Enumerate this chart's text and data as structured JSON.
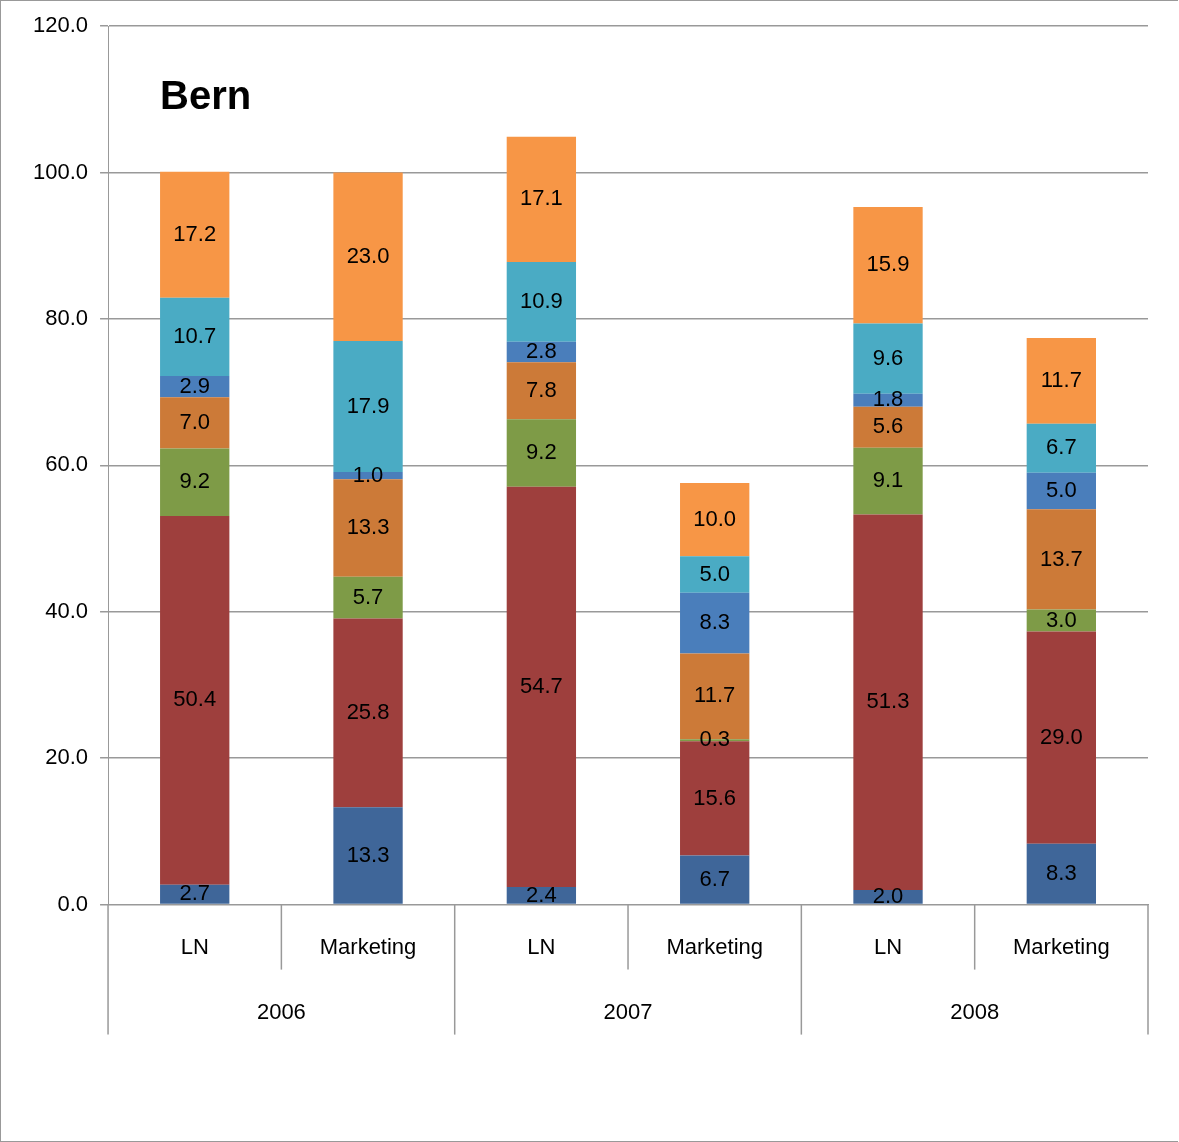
{
  "chart_data": {
    "type": "bar",
    "title": "Bern",
    "stacked": true,
    "grid": "y",
    "legend": false,
    "categories": [
      "LN",
      "Marketing",
      "LN",
      "Marketing",
      "LN",
      "Marketing"
    ],
    "annotations": [
      "2006",
      "2007",
      "2008"
    ],
    "ylim": [
      0,
      120
    ],
    "yticks": [
      {
        "value": 0,
        "label": "0.0"
      },
      {
        "value": 20,
        "label": "20.0"
      },
      {
        "value": 40,
        "label": "40.0"
      },
      {
        "value": 60,
        "label": "60.0"
      },
      {
        "value": 80,
        "label": "80.0"
      },
      {
        "value": 100,
        "label": "100.0"
      },
      {
        "value": 120,
        "label": "120.0"
      }
    ],
    "series": [
      {
        "color": "#3f6699",
        "values": [
          2.7,
          13.3,
          2.4,
          6.7,
          2.0,
          8.3
        ],
        "value_labels": [
          "2.7",
          "13.3",
          "2.4",
          "6.7",
          "2.0",
          "8.3"
        ]
      },
      {
        "color": "#9e3f3d",
        "values": [
          50.4,
          25.8,
          54.7,
          15.6,
          51.3,
          29.0
        ],
        "value_labels": [
          "50.4",
          "25.8",
          "54.7",
          "15.6",
          "51.3",
          "29.0"
        ]
      },
      {
        "color": "#7e9b47",
        "values": [
          9.2,
          5.7,
          9.2,
          0.3,
          9.1,
          3.0
        ],
        "value_labels": [
          "9.2",
          "5.7",
          "9.2",
          "0.3",
          "9.1",
          "3.0"
        ]
      },
      {
        "color": "#cc7a38",
        "values": [
          7.0,
          13.3,
          7.8,
          11.7,
          5.6,
          13.7
        ],
        "value_labels": [
          "7.0",
          "13.3",
          "7.8",
          "11.7",
          "5.6",
          "13.7"
        ]
      },
      {
        "color": "#4a7ebb",
        "values": [
          2.9,
          1.0,
          2.8,
          8.3,
          1.8,
          5.0
        ],
        "value_labels": [
          "2.9",
          "1.0",
          "2.8",
          "8.3",
          "1.8",
          "5.0"
        ]
      },
      {
        "color": "#4aabc4",
        "values": [
          10.7,
          17.9,
          10.9,
          5.0,
          9.6,
          6.7
        ],
        "value_labels": [
          "10.7",
          "17.9",
          "10.9",
          "5.0",
          "9.6",
          "6.7"
        ]
      },
      {
        "color": "#f79646",
        "values": [
          17.2,
          23.0,
          17.1,
          10.0,
          15.9,
          11.7
        ],
        "value_labels": [
          "17.2",
          "23.0",
          "17.1",
          "10.0",
          "15.9",
          "11.7"
        ]
      }
    ]
  }
}
